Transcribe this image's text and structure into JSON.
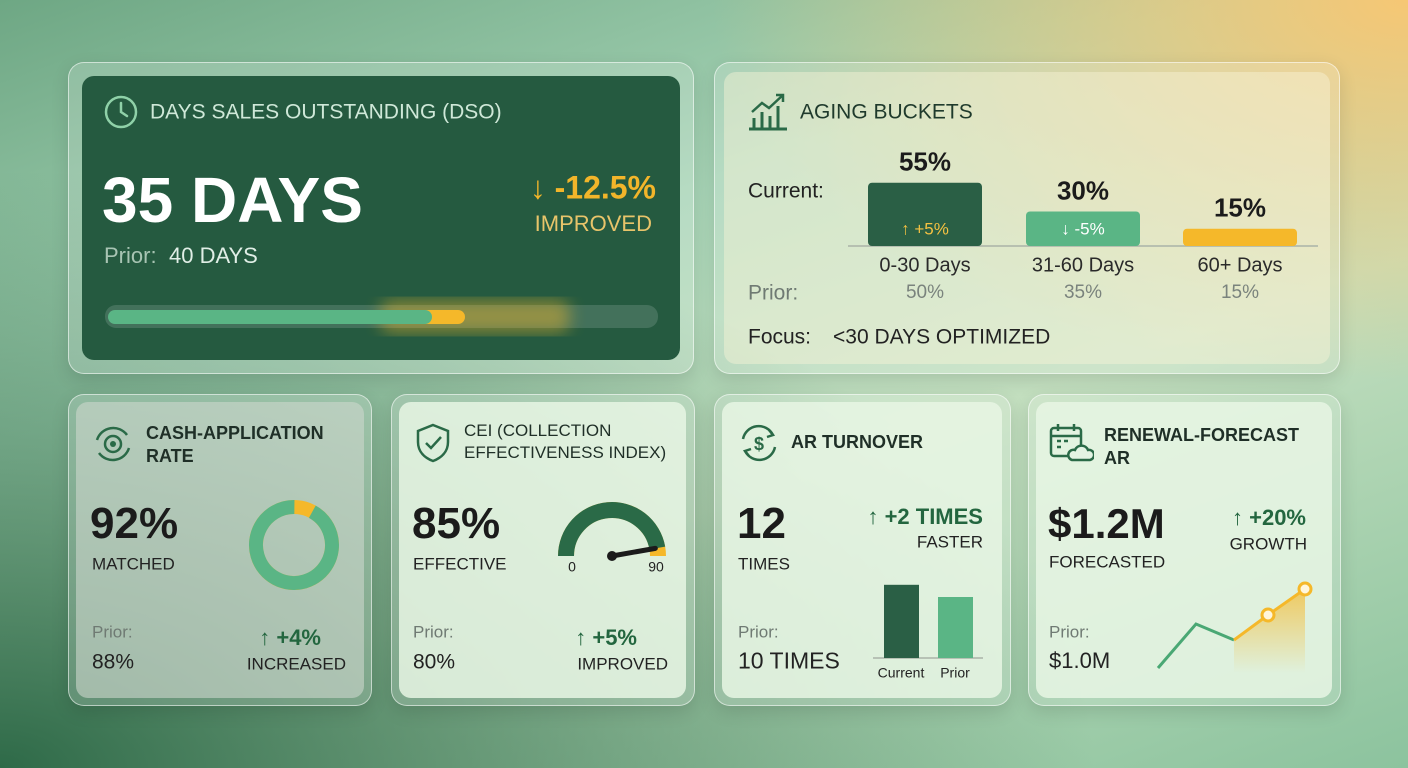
{
  "dso": {
    "title": "DAYS SALES OUTSTANDING (DSO)",
    "value": "35 DAYS",
    "prior_label": "Prior:",
    "prior_value": "40 DAYS",
    "change": "↓ -12.5%",
    "change_label": "IMPROVED"
  },
  "aging": {
    "title": "AGING BUCKETS",
    "current_label": "Current:",
    "prior_label": "Prior:",
    "focus_label": "Focus:",
    "focus_value": "<30 DAYS OPTIMIZED",
    "buckets": [
      {
        "name": "0-30 Days",
        "current": {
          "value": 55,
          "label": "55%"
        },
        "change": "↑ +5%",
        "prior": "50%",
        "color": "#2a5f45"
      },
      {
        "name": "31-60 Days",
        "current": {
          "value": 30,
          "label": "30%"
        },
        "change": "↓ -5%",
        "prior": "35%",
        "color": "#5ab585"
      },
      {
        "name": "60+ Days",
        "current": {
          "value": 15,
          "label": "15%"
        },
        "change": null,
        "prior": "15%",
        "color": "#f5b82a"
      }
    ]
  },
  "cash_application": {
    "title": "CASH-APPLICATION RATE",
    "value": {
      "value": 92,
      "label": "92%"
    },
    "value_label": "MATCHED",
    "prior_label": "Prior:",
    "prior_value": "88%",
    "change": "↑ +4%",
    "change_label": "INCREASED"
  },
  "cei": {
    "title": "CEI (COLLECTION EFFECTIVENESS INDEX)",
    "value": {
      "value": 85,
      "label": "85%"
    },
    "value_label": "EFFECTIVE",
    "gauge_min": 0,
    "gauge_max": 90,
    "prior_label": "Prior:",
    "prior_value": "80%",
    "change": "↑ +5%",
    "change_label": "IMPROVED"
  },
  "ar_turnover": {
    "title": "AR TURNOVER",
    "value": 12,
    "value_label": "TIMES",
    "change": "↑ +2 TIMES",
    "change_label": "FASTER",
    "prior_label": "Prior:",
    "prior_value": {
      "value": 10,
      "label": "10 TIMES"
    },
    "bar_labels": [
      "Current",
      "Prior"
    ]
  },
  "renewal_forecast": {
    "title": "RENEWAL-FORECAST AR",
    "value": "$1.2M",
    "value_label": "FORECASTED",
    "change": "↑ +20%",
    "change_label": "GROWTH",
    "prior_label": "Prior:",
    "prior_value": "$1.0M"
  }
}
